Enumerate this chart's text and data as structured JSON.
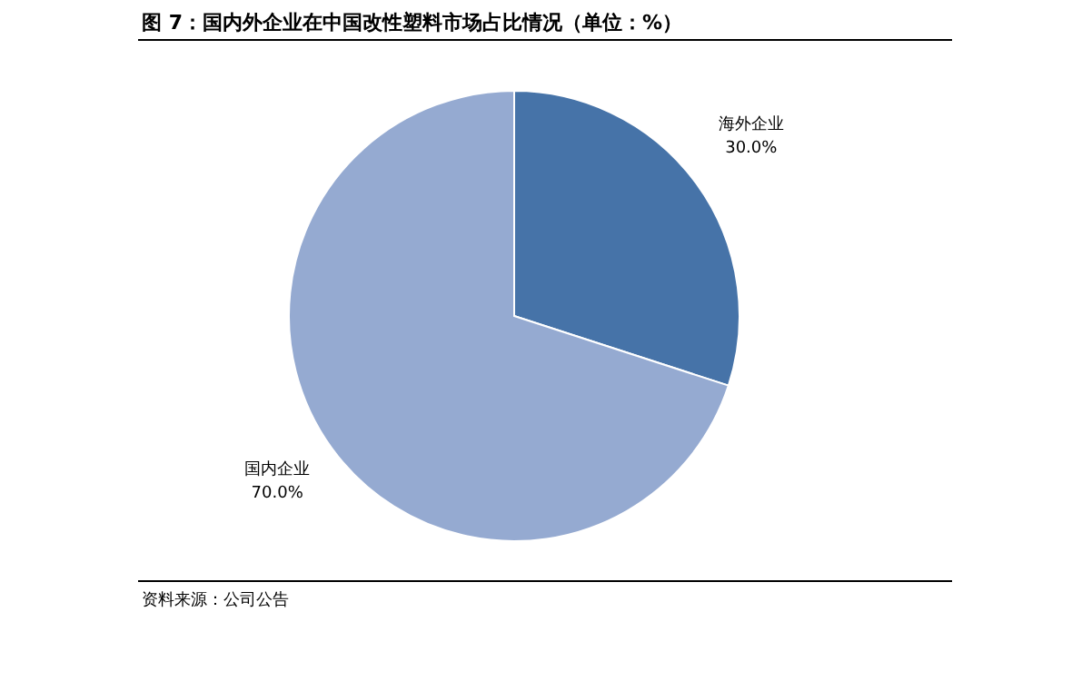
{
  "chart_data": {
    "type": "pie",
    "title": "图 7：国内外企业在中国改性塑料市场占比情况（单位：%）",
    "categories": [
      "海外企业",
      "国内企业"
    ],
    "values": [
      30.0,
      70.0
    ],
    "colors": [
      "#4673a8",
      "#95aad1"
    ],
    "value_labels": [
      "30.0%",
      "70.0%"
    ],
    "annotations": [
      "资料来源：公司公告"
    ]
  }
}
